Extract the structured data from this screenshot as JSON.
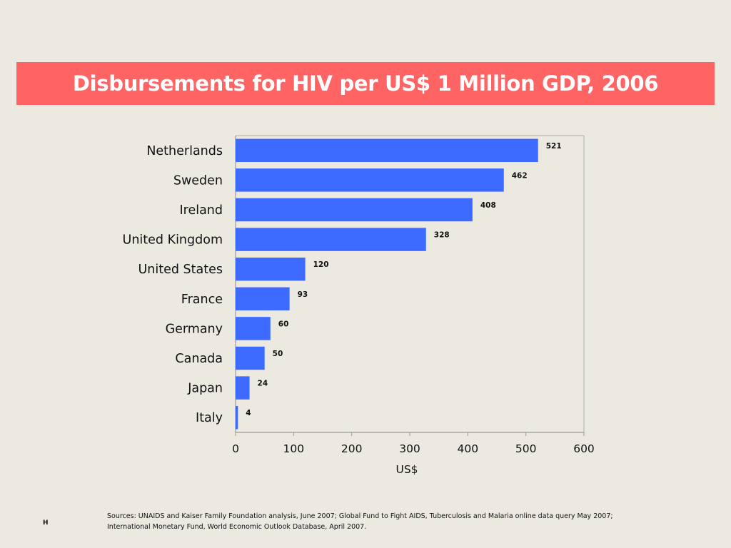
{
  "title": "Disbursements for HIV per US$ 1 Million GDP, 2006",
  "chart_data": {
    "type": "bar",
    "orientation": "horizontal",
    "categories": [
      "Netherlands",
      "Sweden",
      "Ireland",
      "United Kingdom",
      "United States",
      "France",
      "Germany",
      "Canada",
      "Japan",
      "Italy"
    ],
    "values": [
      521,
      462,
      408,
      328,
      120,
      93,
      60,
      50,
      24,
      4
    ],
    "data_labels": [
      "521",
      "462",
      "408",
      "328",
      "120",
      "93",
      "60",
      "50",
      "24",
      "4"
    ],
    "title": "Disbursements for HIV per US$ 1 Million GDP, 2006",
    "xlabel": "US$",
    "ylabel": "",
    "xlim": [
      0,
      600
    ],
    "x_ticks": [
      "0",
      "100",
      "200",
      "300",
      "400",
      "500",
      "600"
    ],
    "grid": false,
    "legend": "none",
    "bar_color": "#3d6bff"
  },
  "footnote": {
    "line1": "Sources: UNAIDS and Kaiser Family Foundation analysis, June 2007; Global Fund to Fight AIDS, Tuberculosis and Malaria online data query May 2007;",
    "line2": "International Monetary Fund, World Economic Outlook Database, April 2007."
  },
  "slide_mark": "H",
  "colors": {
    "background": "#ece9e0",
    "banner": "#ff6464",
    "banner_text": "#ffffff",
    "bar": "#3d6bff"
  }
}
